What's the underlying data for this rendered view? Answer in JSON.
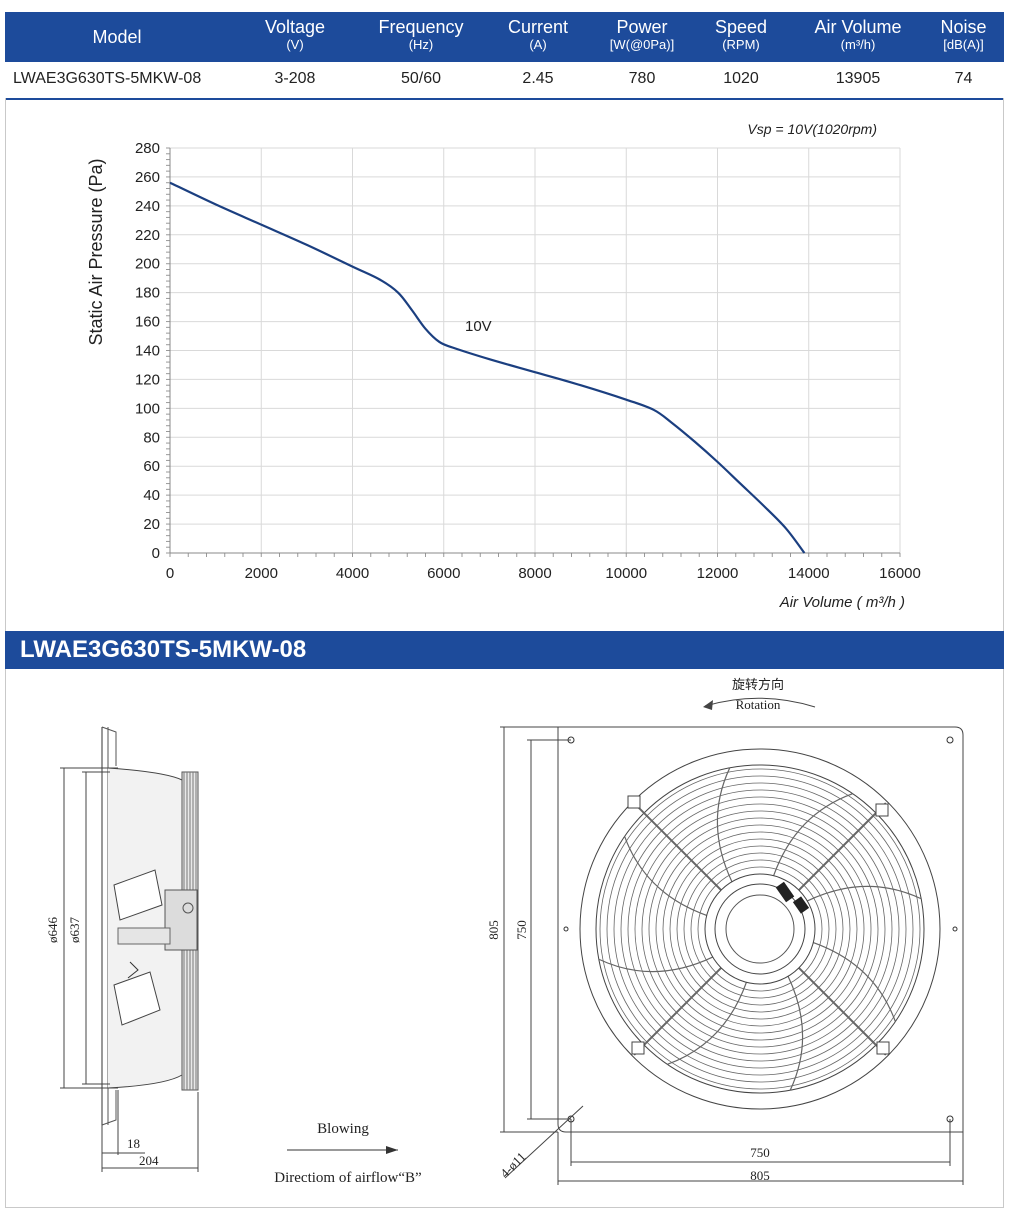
{
  "table": {
    "headers": [
      {
        "label": "Model",
        "unit": ""
      },
      {
        "label": "Voltage",
        "unit": "(V)"
      },
      {
        "label": "Frequency",
        "unit": "(Hz)"
      },
      {
        "label": "Current",
        "unit": "(A)"
      },
      {
        "label": "Power",
        "unit": "[W(@0Pa)]"
      },
      {
        "label": "Speed",
        "unit": "(RPM)"
      },
      {
        "label": "Air Volume",
        "unit": "(m³/h)"
      },
      {
        "label": "Noise",
        "unit": "[dB(A)]"
      }
    ],
    "row": [
      "LWAE3G630TS-5MKW-08",
      "3-208",
      "50/60",
      "2.45",
      "780",
      "1020",
      "13905",
      "74"
    ]
  },
  "chart_data": {
    "type": "line",
    "title": "Vsp = 10V(1020rpm)",
    "xlabel": "Air Volume ( m³/h )",
    "ylabel": "Static Air Pressure  (Pa)",
    "xlim": [
      0,
      16000
    ],
    "ylim": [
      0,
      280
    ],
    "xticks": [
      0,
      2000,
      4000,
      6000,
      8000,
      10000,
      12000,
      14000,
      16000
    ],
    "yticks": [
      0,
      20,
      40,
      60,
      80,
      100,
      120,
      140,
      160,
      180,
      200,
      220,
      240,
      260,
      280
    ],
    "grid": true,
    "series": [
      {
        "name": "10V",
        "color": "#1b3f80",
        "x": [
          0,
          1000,
          2000,
          3000,
          4000,
          4600,
          5000,
          5300,
          5600,
          5900,
          6200,
          7000,
          8000,
          9000,
          10000,
          10600,
          11000,
          11500,
          12000,
          12500,
          13000,
          13500,
          13905
        ],
        "y": [
          256,
          241,
          227,
          213,
          198,
          189,
          180,
          168,
          155,
          146,
          142,
          134,
          125,
          116,
          106,
          99,
          90,
          77,
          63,
          48,
          33,
          17,
          0
        ]
      }
    ]
  },
  "drawing": {
    "title": "LWAE3G630TS-5MKW-08",
    "rotation_cn": "旋转方向",
    "rotation_en": "Rotation",
    "blowing": "Blowing",
    "airflow": "Directiom of airflow“B”",
    "dims": {
      "d646": "ø646",
      "d637": "ø637",
      "d18": "18",
      "d204": "204",
      "h805": "805",
      "h750": "750",
      "w750": "750",
      "w805": "805",
      "hole": "4-ø11"
    }
  }
}
